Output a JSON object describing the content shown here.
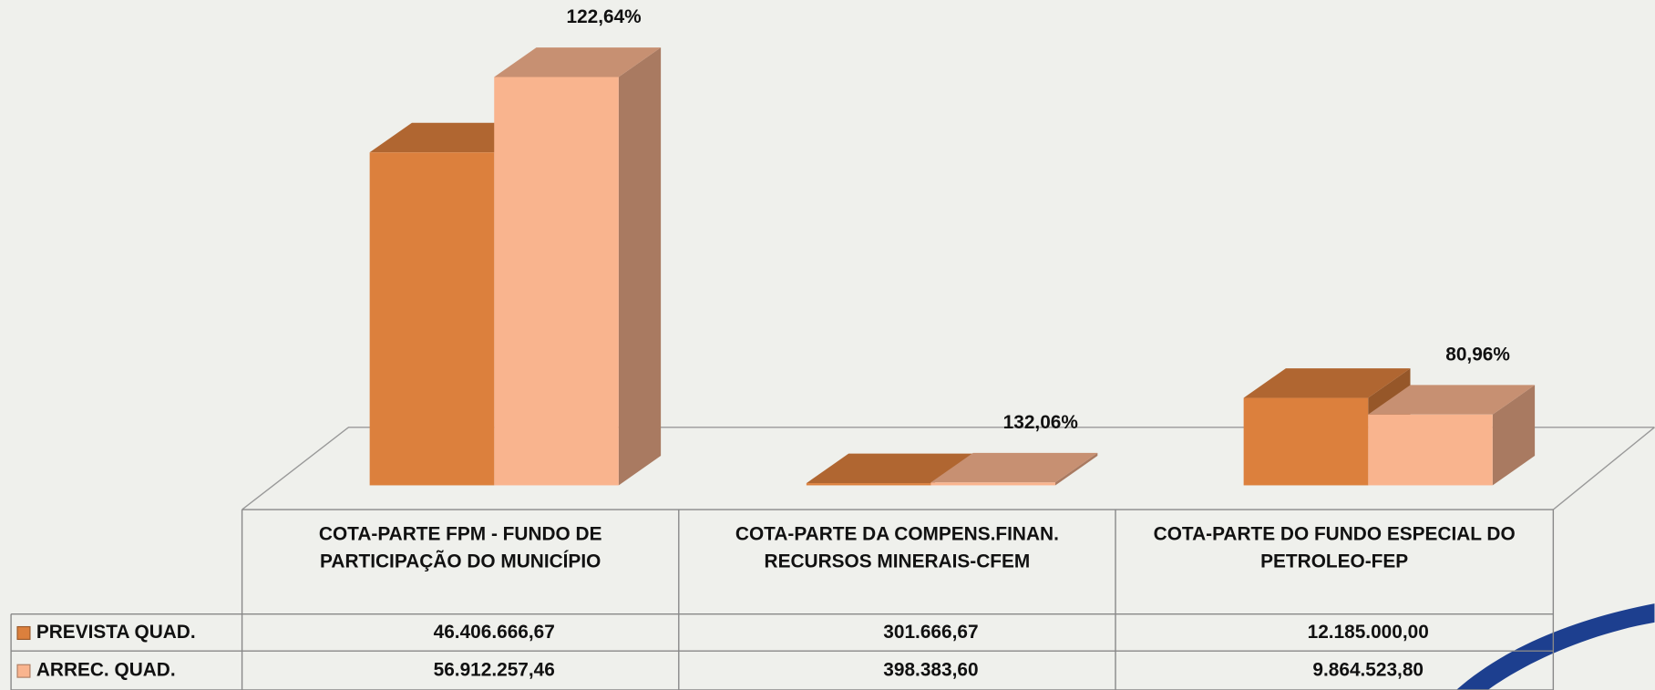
{
  "chart_data": {
    "type": "bar3d",
    "categories": [
      "COTA-PARTE FPM - FUNDO DE PARTICIPAÇÃO DO MUNICÍPIO",
      "COTA-PARTE DA COMPENS.FINAN. RECURSOS MINERAIS-CFEM",
      "COTA-PARTE DO FUNDO ESPECIAL DO PETROLEO-FEP"
    ],
    "series": [
      {
        "name": "PREVISTA QUAD.",
        "color": "#dc803d",
        "values": [
          46406666.67,
          301666.67,
          12185000.0
        ],
        "value_labels": [
          "46.406.666,67",
          "301.666,67",
          "12.185.000,00"
        ]
      },
      {
        "name": "ARREC. QUAD.",
        "color": "#f9b48e",
        "values": [
          56912257.46,
          398383.6,
          9864523.8
        ],
        "value_labels": [
          "56.912.257,46",
          "398.383,60",
          "9.864.523,80"
        ]
      }
    ],
    "annotations": [
      "122,64%",
      "132,06%",
      "80,96%"
    ],
    "legend": "table"
  }
}
